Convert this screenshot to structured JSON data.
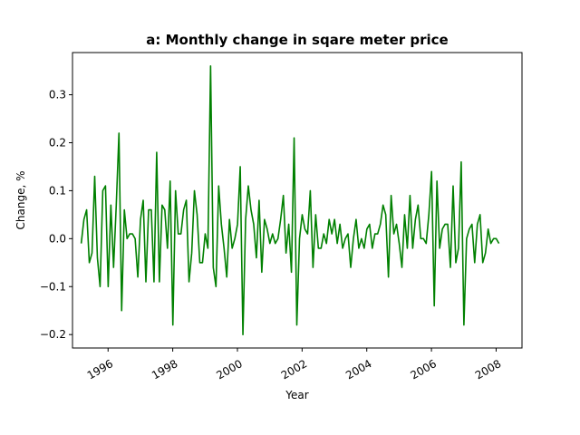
{
  "chart_data": {
    "type": "line",
    "title": "a: Monthly change in sqare meter price",
    "xlabel": "Year",
    "ylabel": "Change, %",
    "xlim": [
      1994.9,
      2008.8
    ],
    "ylim": [
      -0.228,
      0.388
    ],
    "grid": false,
    "x_ticks": [
      1996,
      1998,
      2000,
      2002,
      2004,
      2006,
      2008
    ],
    "x_tick_labels": [
      "1996",
      "1998",
      "2000",
      "2002",
      "2004",
      "2006",
      "2008"
    ],
    "y_ticks": [
      -0.2,
      -0.1,
      0.0,
      0.1,
      0.2,
      0.3
    ],
    "y_tick_labels": [
      "−0.2",
      "−0.1",
      "0.0",
      "0.1",
      "0.2",
      "0.3"
    ],
    "series": [
      {
        "color": "#008000",
        "x_start": 1995.17,
        "x_step": 0.0833333,
        "values": [
          -0.01,
          0.04,
          0.06,
          -0.05,
          -0.03,
          0.13,
          -0.04,
          -0.1,
          0.1,
          0.11,
          -0.1,
          0.07,
          -0.06,
          0.07,
          0.22,
          -0.15,
          0.06,
          0.0,
          0.01,
          0.01,
          0.0,
          -0.08,
          0.04,
          0.08,
          -0.09,
          0.06,
          0.06,
          -0.09,
          0.18,
          -0.09,
          0.07,
          0.06,
          -0.02,
          0.12,
          -0.18,
          0.1,
          0.01,
          0.01,
          0.06,
          0.08,
          -0.09,
          -0.03,
          0.1,
          0.05,
          -0.05,
          -0.05,
          0.01,
          -0.02,
          0.36,
          -0.06,
          -0.1,
          0.11,
          0.03,
          -0.02,
          -0.08,
          0.04,
          -0.02,
          0.0,
          0.03,
          0.15,
          -0.2,
          0.04,
          0.11,
          0.06,
          0.03,
          -0.04,
          0.08,
          -0.07,
          0.04,
          0.02,
          -0.01,
          0.01,
          -0.01,
          0.0,
          0.04,
          0.09,
          -0.03,
          0.03,
          -0.07,
          0.21,
          -0.18,
          0.0,
          0.05,
          0.02,
          0.01,
          0.1,
          -0.06,
          0.05,
          -0.02,
          -0.02,
          0.01,
          -0.01,
          0.04,
          0.01,
          0.04,
          -0.01,
          0.03,
          -0.02,
          0.0,
          0.01,
          -0.06,
          0.0,
          0.04,
          -0.02,
          0.0,
          -0.02,
          0.02,
          0.03,
          -0.02,
          0.01,
          0.01,
          0.03,
          0.07,
          0.05,
          -0.08,
          0.09,
          0.01,
          0.03,
          -0.01,
          -0.06,
          0.05,
          -0.02,
          0.09,
          -0.02,
          0.04,
          0.07,
          0.0,
          0.0,
          -0.01,
          0.05,
          0.14,
          -0.14,
          0.12,
          -0.02,
          0.02,
          0.03,
          0.03,
          -0.06,
          0.11,
          -0.05,
          -0.02,
          0.16,
          -0.18,
          0.0,
          0.02,
          0.03,
          -0.05,
          0.03,
          0.05,
          -0.05,
          -0.03,
          0.02,
          -0.01,
          0.0,
          0.0,
          -0.01
        ]
      }
    ]
  }
}
